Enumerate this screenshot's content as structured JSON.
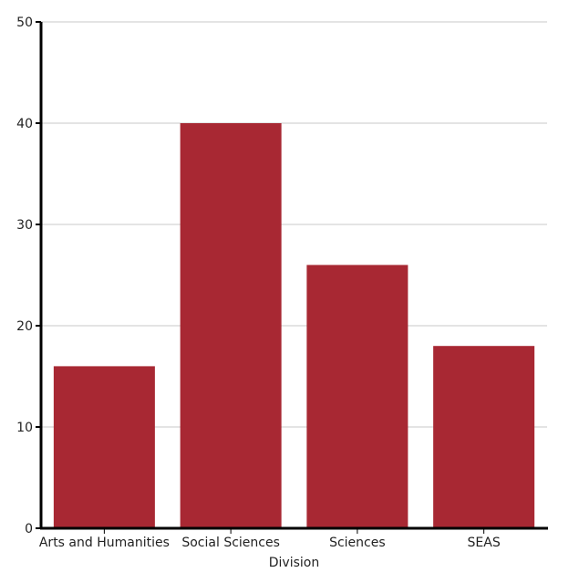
{
  "chart_data": {
    "type": "bar",
    "title": "",
    "xlabel": "Division",
    "ylabel": "",
    "categories": [
      "Arts and Humanities",
      "Social Sciences",
      "Sciences",
      "SEAS"
    ],
    "values": [
      16,
      40,
      26,
      18
    ],
    "ylim": [
      0,
      50
    ],
    "yticks": [
      0,
      10,
      20,
      30,
      40,
      50
    ],
    "grid": true,
    "legend": "none",
    "colors": {
      "bar": "#a82833",
      "grid": "#c8c8c8",
      "axis": "#000000"
    }
  }
}
